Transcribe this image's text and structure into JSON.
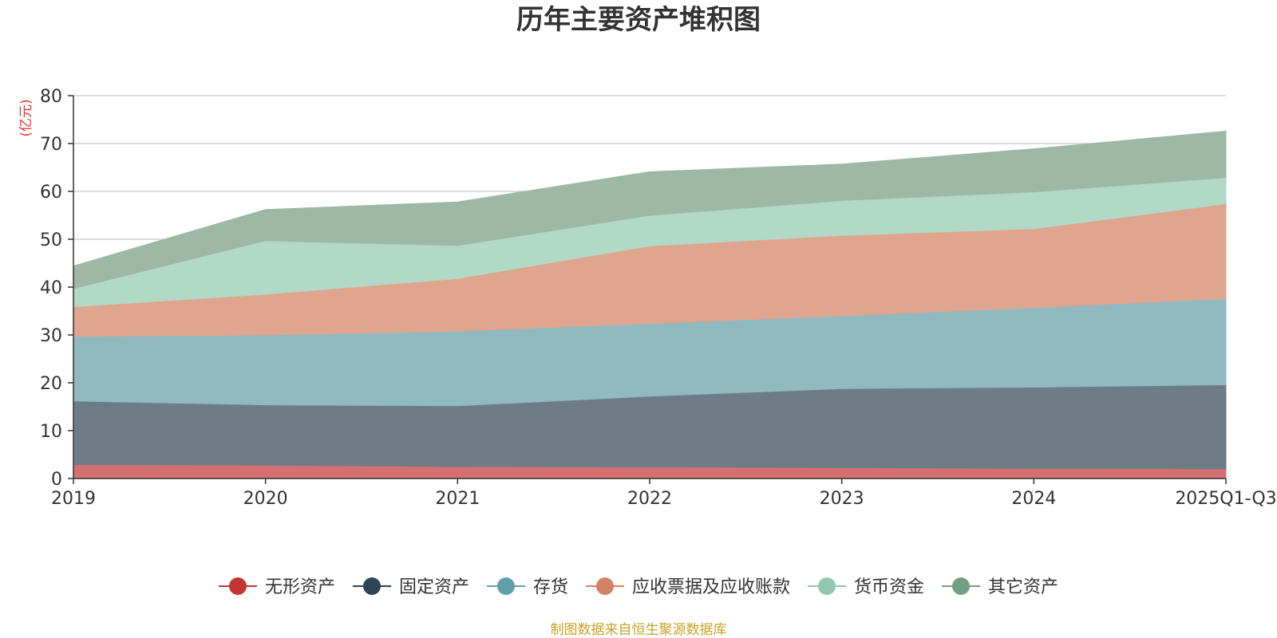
{
  "chart_data": {
    "type": "area",
    "stacked": true,
    "title": "历年主要资产堆积图",
    "ylabel": "(亿元)",
    "xlabel": "",
    "ylim": [
      0,
      80
    ],
    "yticks": [
      0,
      10,
      20,
      30,
      40,
      50,
      60,
      70,
      80
    ],
    "grid": true,
    "legend_position": "bottom",
    "categories": [
      "2019",
      "2020",
      "2021",
      "2022",
      "2023",
      "2024",
      "2025Q1-Q3"
    ],
    "series": [
      {
        "name": "无形资产",
        "color": "#c23531",
        "fill": "#d47070",
        "values": [
          2.9,
          2.8,
          2.5,
          2.4,
          2.3,
          2.1,
          2.0
        ]
      },
      {
        "name": "固定资产",
        "color": "#2f4554",
        "fill": "#6e7c87",
        "values": [
          13.3,
          12.6,
          12.7,
          14.8,
          16.5,
          17.0,
          17.6
        ]
      },
      {
        "name": "存货",
        "color": "#61a0a8",
        "fill": "#90bac0",
        "values": [
          13.5,
          14.6,
          15.6,
          15.2,
          15.2,
          16.6,
          18.0
        ]
      },
      {
        "name": "应收票据及应收账款",
        "color": "#d48265",
        "fill": "#dfa58f",
        "values": [
          6.2,
          8.5,
          11.0,
          16.2,
          16.8,
          16.5,
          19.8
        ]
      },
      {
        "name": "货币资金",
        "color": "#91c7ae",
        "fill": "#b2d8c6",
        "values": [
          3.8,
          11.2,
          6.9,
          6.4,
          7.3,
          7.7,
          5.5
        ]
      },
      {
        "name": "其它资产",
        "color": "#749f83",
        "fill": "#9db8a5",
        "values": [
          4.7,
          6.5,
          9.1,
          9.1,
          7.6,
          9.0,
          9.7
        ]
      }
    ],
    "source": "制图数据来自恒生聚源数据库",
    "source_color": "#c9a227",
    "ylabel_color": "#e8322e"
  }
}
